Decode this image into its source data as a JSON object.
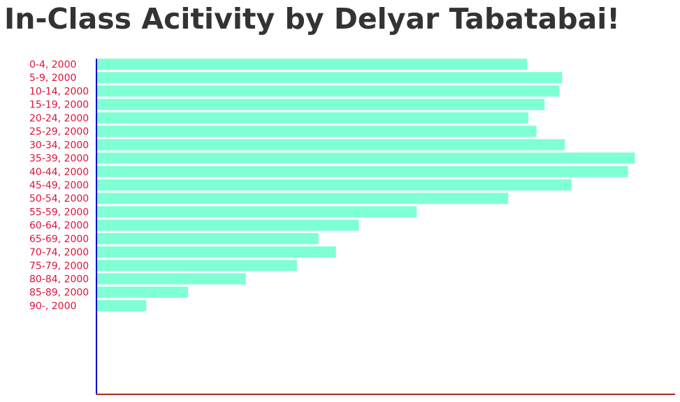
{
  "page": {
    "title": "In-Class Acitivity by Delyar Tabatabai!"
  },
  "colors": {
    "bar": "#7fffd4",
    "tick_label": "#dc143c",
    "y_axis": "#0000cd",
    "x_axis": "#b22222",
    "title": "#333333"
  },
  "chart_data": {
    "type": "bar",
    "orientation": "horizontal",
    "title": "",
    "xlabel": "",
    "ylabel": "",
    "grid": false,
    "xlim": [
      0,
      21500000
    ],
    "categories": [
      "0-4, 2000",
      "5-9, 2000",
      "10-14, 2000",
      "15-19, 2000",
      "20-24, 2000",
      "25-29, 2000",
      "30-34, 2000",
      "35-39, 2000",
      "40-44, 2000",
      "45-49, 2000",
      "50-54, 2000",
      "55-59, 2000",
      "60-64, 2000",
      "65-69, 2000",
      "70-74, 2000",
      "75-79, 2000",
      "80-84, 2000",
      "85-89, 2000",
      "90-, 2000"
    ],
    "values": [
      16000000,
      17300000,
      17200000,
      16650000,
      16050000,
      16350000,
      17400000,
      20000000,
      19750000,
      17650000,
      15300000,
      11900000,
      9750000,
      8250000,
      8900000,
      7450000,
      5550000,
      3400000,
      1850000
    ]
  }
}
